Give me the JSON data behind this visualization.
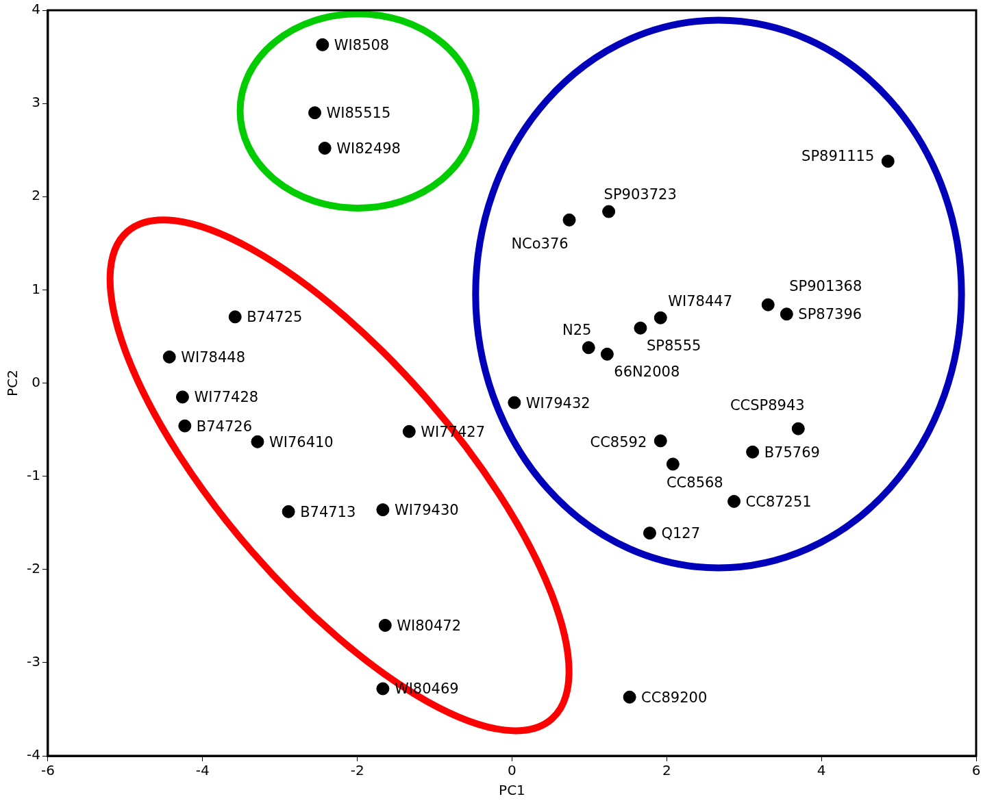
{
  "chart_data": {
    "type": "scatter",
    "xlabel": "PC1",
    "ylabel": "PC2",
    "xlim": [
      -6,
      6
    ],
    "xticks": [
      -6,
      -4,
      -2,
      0,
      2,
      4,
      6
    ],
    "ylim": [
      -4,
      4
    ],
    "yticks": [
      -4,
      -3,
      -2,
      -1,
      0,
      1,
      2,
      3,
      4
    ],
    "grid": false,
    "legend": false,
    "marker": "circle",
    "series": [
      {
        "color": "#000000",
        "x": [
          -2.45,
          -2.55,
          -2.42,
          4.86,
          1.25,
          0.74,
          3.31,
          3.55,
          1.92,
          1.66,
          0.99,
          1.23,
          0.03,
          3.7,
          1.92,
          3.11,
          2.08,
          2.87,
          1.78,
          1.52,
          -3.58,
          -4.43,
          -4.26,
          -4.23,
          -3.29,
          -1.33,
          -2.89,
          -1.67,
          -1.64,
          -1.67
        ],
        "values": [
          3.63,
          2.9,
          2.52,
          2.38,
          1.84,
          1.75,
          0.84,
          0.74,
          0.7,
          0.59,
          0.38,
          0.31,
          -0.21,
          -0.49,
          -0.62,
          -0.74,
          -0.87,
          -1.27,
          -1.61,
          -3.37,
          0.71,
          0.28,
          -0.15,
          -0.46,
          -0.63,
          -0.52,
          -1.38,
          -1.36,
          -2.6,
          -3.28
        ],
        "value_labels": [
          "WI8508",
          "WI85515",
          "WI82498",
          "SP891115",
          "SP903723",
          "NCo376",
          "SP901368",
          "SP87396",
          "WI78447",
          "SP8555",
          "N25",
          "66N2008",
          "WI79432",
          "CCSP8943",
          "CC8592",
          "B75769",
          "CC8568",
          "CC87251",
          "Q127",
          "CC89200",
          "B74725",
          "WI78448",
          "WI77428",
          "B74726",
          "WI76410",
          "WI77427",
          "B74713",
          "WI79430",
          "WI80472",
          "WI80469"
        ]
      }
    ]
  }
}
